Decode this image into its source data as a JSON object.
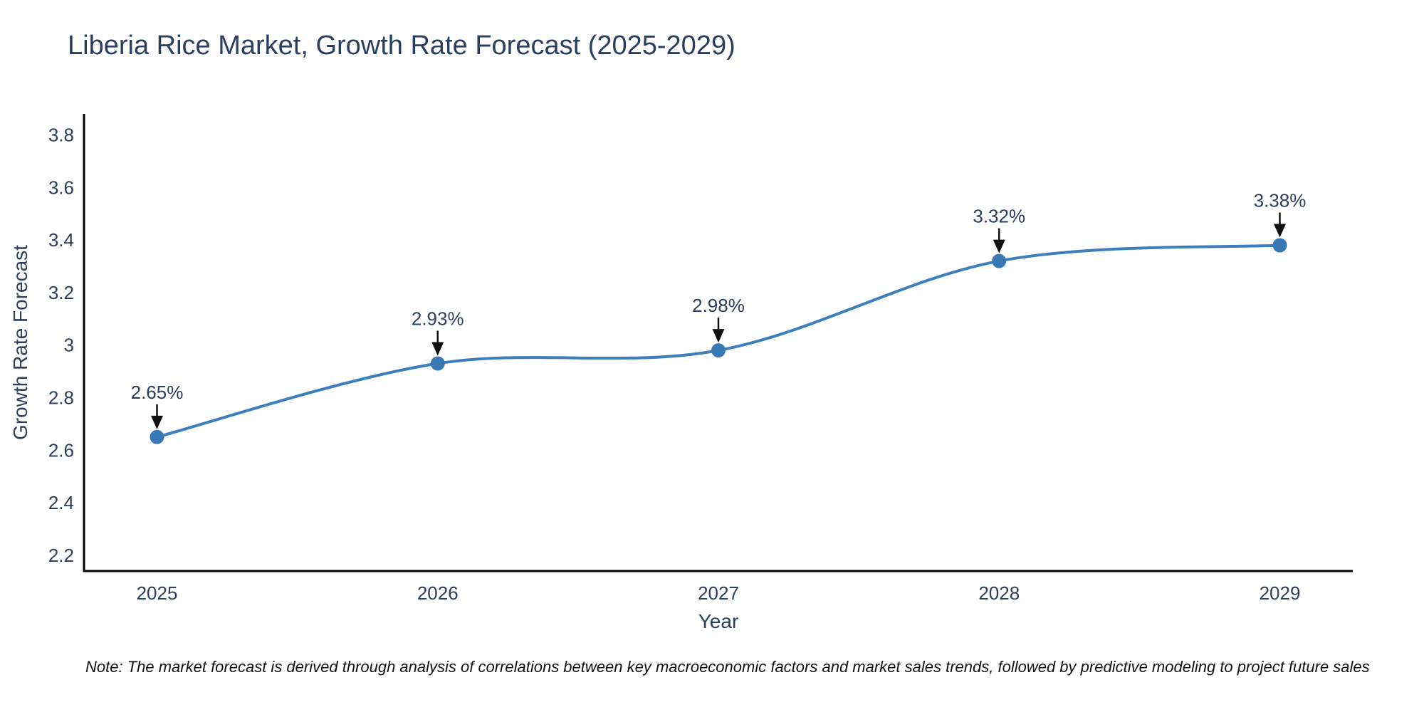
{
  "title": "Liberia Rice Market, Growth Rate Forecast (2025-2029)",
  "note": "Note: The market forecast is derived through analysis of correlations between key macroeconomic factors and market sales trends, followed by predictive modeling to project future sales",
  "chart_data": {
    "type": "line",
    "line_shape": "spline",
    "title": "Liberia Rice Market, Growth Rate Forecast (2025-2029)",
    "xlabel": "Year",
    "ylabel": "Growth Rate Forecast",
    "x": [
      2025,
      2026,
      2027,
      2028,
      2029
    ],
    "y": [
      2.65,
      2.93,
      2.98,
      3.32,
      3.38
    ],
    "point_labels": [
      "2.65%",
      "2.93%",
      "2.98%",
      "3.32%",
      "3.38%"
    ],
    "xtick_labels": [
      "2025",
      "2026",
      "2027",
      "2028",
      "2029"
    ],
    "ytick_values": [
      2.2,
      2.4,
      2.6,
      2.8,
      3.0,
      3.2,
      3.4,
      3.6,
      3.8
    ],
    "ytick_labels": [
      "2.2",
      "2.4",
      "2.6",
      "2.8",
      "3",
      "3.2",
      "3.4",
      "3.6",
      "3.8"
    ],
    "xlim": [
      2024.74,
      2029.26
    ],
    "ylim": [
      2.14,
      3.88
    ],
    "grid": false,
    "legend": false,
    "markers": true,
    "annotations_with_arrows": true,
    "colors": {
      "line": "#3d7ebd",
      "marker": "#3878b4",
      "axis_line": "#000000",
      "text": "#2a3f5f",
      "arrow": "#111111",
      "note_text": "#111111",
      "background": "#ffffff"
    }
  }
}
